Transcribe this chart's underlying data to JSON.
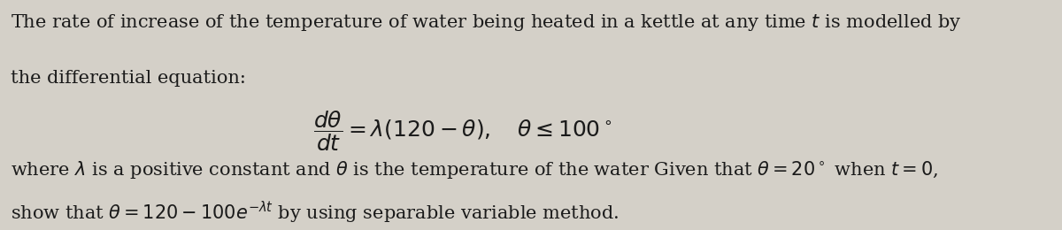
{
  "bg_color": "#d4d0c8",
  "text_color": "#1a1a1a",
  "heading_line1": "The rate of increase of the temperature of water being heated in a kettle at any time $t$ is modelled by",
  "heading_line2": "the differential equation:",
  "body_text": "where $\\lambda$ is a positive constant and $\\theta$ is the temperature of the water Given that $\\theta = 20^\\circ$ when $t = 0$,",
  "conclusion_text": "show that $\\theta = 120 - 100e^{-\\lambda t}$ by using separable variable method.",
  "font_size_body": 15,
  "font_size_equation": 18
}
